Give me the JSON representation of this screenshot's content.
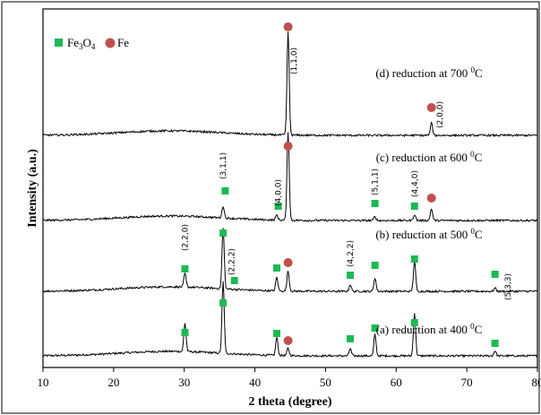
{
  "chart_data": {
    "type": "line",
    "xlabel": "2 theta (degree)",
    "ylabel": "Intensity (a.u.)",
    "xlim": [
      10,
      80
    ],
    "xticks": [
      "10",
      "20",
      "30",
      "40",
      "50",
      "60",
      "70",
      "80"
    ],
    "grid": false,
    "legend": {
      "position": "top-left",
      "entries": [
        {
          "label_main": "Fe",
          "label_sub": "3",
          "label_main2": "O",
          "label_sub2": "4",
          "marker": "square",
          "color": "#1db954"
        },
        {
          "label_main": "Fe",
          "marker": "circle",
          "color": "#c0504d"
        }
      ]
    },
    "series": [
      {
        "name": "(a) reduction at 400 °C",
        "label_text": "(a) reduction at 400",
        "label_sup": "0",
        "label_unit": "C",
        "peaks": [
          {
            "x": 30.1,
            "height": 0.4
          },
          {
            "x": 35.5,
            "height": 1.0
          },
          {
            "x": 43.1,
            "height": 0.25
          },
          {
            "x": 44.7,
            "height": 0.1
          },
          {
            "x": 53.5,
            "height": 0.1
          },
          {
            "x": 57.0,
            "height": 0.3
          },
          {
            "x": 62.6,
            "height": 0.6
          },
          {
            "x": 74.0,
            "height": 0.07
          }
        ],
        "fe3o4_markers": [
          30.1,
          35.5,
          43.1,
          53.5,
          57.0,
          62.6,
          74.0
        ],
        "fe_markers": [
          44.7
        ]
      },
      {
        "name": "(b) reduction at 500 °C",
        "label_text": "(b) reduction at 500",
        "label_sup": "0",
        "label_unit": "C",
        "peaks": [
          {
            "x": 30.1,
            "height": 0.2
          },
          {
            "x": 35.5,
            "height": 0.9
          },
          {
            "x": 43.1,
            "height": 0.2
          },
          {
            "x": 44.7,
            "height": 0.3
          },
          {
            "x": 53.5,
            "height": 0.1
          },
          {
            "x": 57.0,
            "height": 0.2
          },
          {
            "x": 62.6,
            "height": 0.45
          },
          {
            "x": 74.0,
            "height": 0.05
          }
        ],
        "fe3o4_markers": [
          30.1,
          35.5,
          37.1,
          43.1,
          53.5,
          57.0,
          62.6,
          74.0
        ],
        "fe_markers": [
          44.7
        ],
        "hkl": [
          {
            "x": 30.1,
            "label": "(2,2,0)"
          },
          {
            "x": 36.7,
            "label": "(2,2,2)"
          },
          {
            "x": 53.5,
            "label": "(4,2,2)"
          },
          {
            "x": 75.8,
            "label": "(5,3,3)"
          }
        ]
      },
      {
        "name": "(c) reduction at 600 °C",
        "label_text": "(c) reduction at 600",
        "label_sup": "0",
        "label_unit": "C",
        "peaks": [
          {
            "x": 35.5,
            "height": 0.12
          },
          {
            "x": 43.1,
            "height": 0.05
          },
          {
            "x": 44.7,
            "height": 0.9
          },
          {
            "x": 57.0,
            "height": 0.04
          },
          {
            "x": 62.6,
            "height": 0.06
          },
          {
            "x": 65.0,
            "height": 0.12
          }
        ],
        "fe3o4_markers": [
          35.8,
          43.3,
          57.0,
          62.6
        ],
        "fe_markers": [
          44.7,
          65.0
        ],
        "hkl": [
          {
            "x": 35.5,
            "label": "(3,1,1)"
          },
          {
            "x": 43.3,
            "label": "(4,0,0)"
          },
          {
            "x": 57.0,
            "label": "(5,1,1)"
          },
          {
            "x": 62.6,
            "label": "(4,4,0)"
          }
        ]
      },
      {
        "name": "(d) reduction at 700 °C",
        "label_text": "(d) reduction at 700",
        "label_sup": "0",
        "label_unit": "C",
        "peaks": [
          {
            "x": 44.7,
            "height": 1.0
          },
          {
            "x": 65.0,
            "height": 0.12
          }
        ],
        "fe3o4_markers": [],
        "fe_markers": [
          44.7,
          65.0
        ],
        "hkl": [
          {
            "x": 45.5,
            "label": "(1,1,0)"
          },
          {
            "x": 66.2,
            "label": "(2,0,0)"
          }
        ]
      }
    ]
  }
}
